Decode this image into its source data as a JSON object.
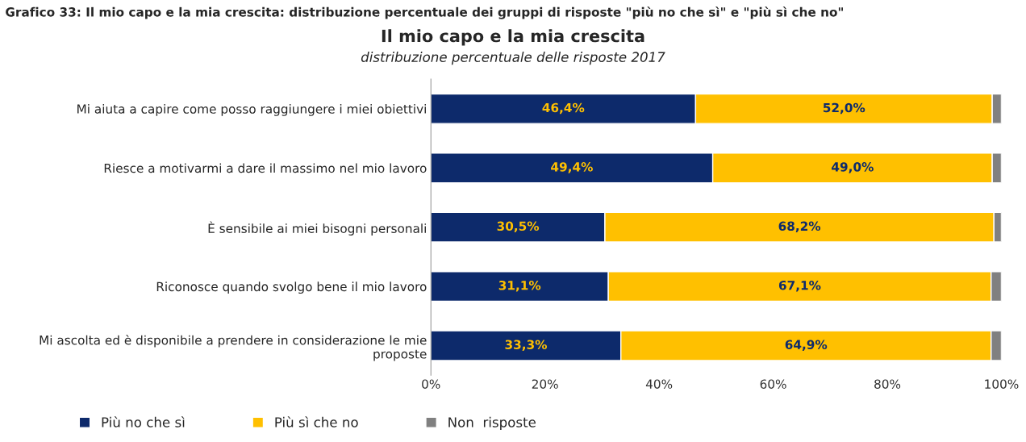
{
  "chart_data": {
    "type": "bar",
    "orientation": "horizontal",
    "stacked": true,
    "title": "Il mio capo e la mia crescita",
    "subtitle": "distribuzione percentuale delle risposte 2017",
    "annotations": [
      "Grafico 33: Il mio capo e la mia crescita: distribuzione percentuale dei gruppi di risposte \"più no che sì\" e \"più sì che no\""
    ],
    "categories": [
      "Mi aiuta a capire come posso raggiungere i miei obiettivi",
      "Riesce a motivarmi a dare il massimo nel mio lavoro",
      "È sensibile ai miei bisogni personali",
      "Riconosce quando svolgo bene il mio lavoro",
      "Mi ascolta ed è disponibile a prendere in considerazione le mie\nproposte"
    ],
    "series": [
      {
        "name": "Più no che sì",
        "color": "#0d2a6b",
        "values": [
          46.4,
          49.4,
          30.5,
          31.1,
          33.3
        ],
        "value_labels": [
          "46,4%",
          "49,4%",
          "30,5%",
          "31,1%",
          "33,3%"
        ]
      },
      {
        "name": "Più sì che no",
        "color": "#ffc000",
        "values": [
          52.0,
          49.0,
          68.2,
          67.1,
          64.9
        ],
        "value_labels": [
          "52,0%",
          "49,0%",
          "68,2%",
          "67,1%",
          "64,9%"
        ]
      },
      {
        "name": "Non  risposte",
        "color": "#808080",
        "values": [
          1.6,
          1.6,
          1.3,
          1.8,
          1.8
        ]
      }
    ],
    "xlim": [
      0,
      100
    ],
    "xticks": [
      {
        "value": 0,
        "label": "0%"
      },
      {
        "value": 20,
        "label": "20%"
      },
      {
        "value": 40,
        "label": "40%"
      },
      {
        "value": 60,
        "label": "60%"
      },
      {
        "value": 80,
        "label": "80%"
      },
      {
        "value": 100,
        "label": "100%"
      }
    ],
    "grid": false,
    "legend": "bottom"
  }
}
